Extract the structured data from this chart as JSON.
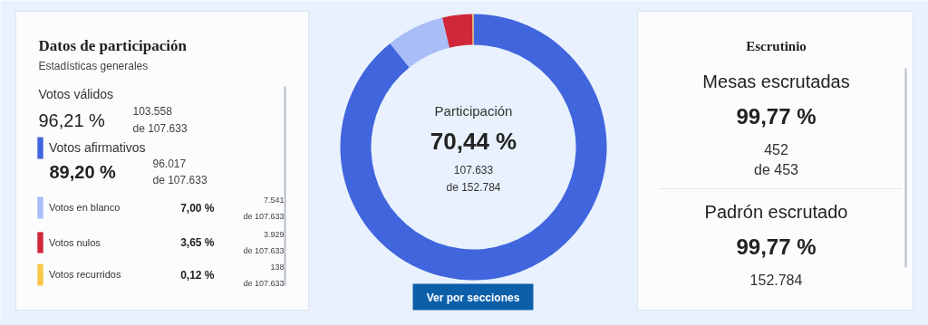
{
  "chart_data": [
    {
      "type": "other",
      "title": "Datos de participación",
      "subtitle": "Estadísticas generales",
      "annotations": [
        "Votos válidos",
        "96,21 %",
        "103.558 de 107.633"
      ]
    },
    {
      "type": "donut",
      "title": "Participación",
      "categories": [
        "Votos afirmativos",
        "Votos en blanco",
        "Votos nulos",
        "Votos recurridos"
      ],
      "values": [
        89.2,
        7.0,
        3.65,
        0.12
      ],
      "colors": [
        "#4065dd",
        "#a9bdf7",
        "#d0283a",
        "#f7c948"
      ],
      "legend": "left",
      "value_labels": [
        "89,20 %",
        "7,00 %",
        "3,65 %",
        "0,12 %"
      ],
      "annotations": [
        "70,44 %",
        "107.633 de 152.784",
        "Ver por secciones",
        "96.017 de 107.633",
        "7.541 de 107.633",
        "3.929 de 107.633",
        "138 de 107.633"
      ]
    },
    {
      "type": "other",
      "title": "Escrutinio",
      "annotations": [
        "Mesas escrutadas",
        "99,77 %",
        "452 de 453",
        "Padrón escrutado",
        "99,77 %",
        "152.784"
      ]
    }
  ]
}
